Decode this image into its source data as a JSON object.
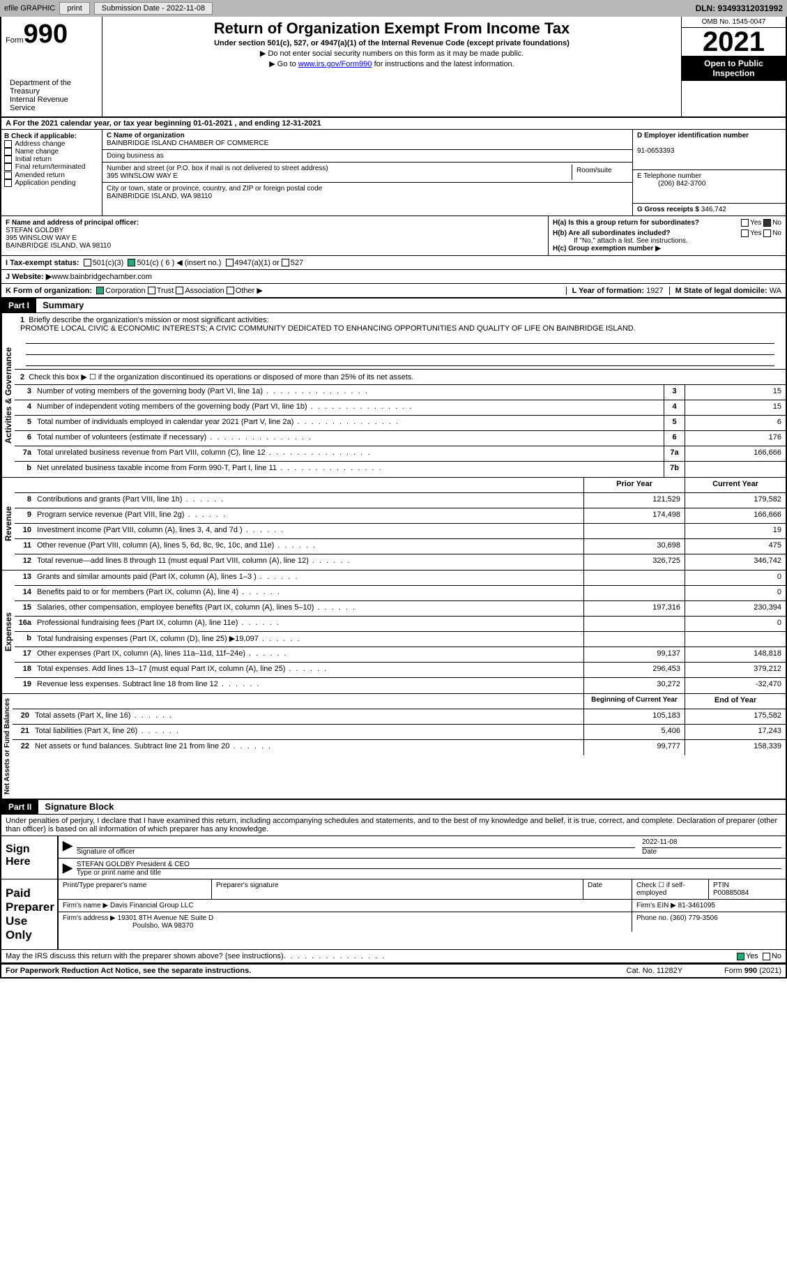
{
  "topbar": {
    "efile": "efile GRAPHIC",
    "print": "print",
    "subdate_label": "Submission Date - ",
    "subdate": "2022-11-08",
    "dln": "DLN: 93493312031992"
  },
  "header": {
    "form_word": "Form",
    "form_no": "990",
    "title": "Return of Organization Exempt From Income Tax",
    "sub": "Under section 501(c), 527, or 4947(a)(1) of the Internal Revenue Code (except private foundations)",
    "note1": "▶ Do not enter social security numbers on this form as it may be made public.",
    "note2_pre": "▶ Go to ",
    "note2_link": "www.irs.gov/Form990",
    "note2_post": " for instructions and the latest information.",
    "dept": "Department of the Treasury\nInternal Revenue Service",
    "omb": "OMB No. 1545-0047",
    "year": "2021",
    "open_pub": "Open to Public Inspection"
  },
  "line_a": "A For the 2021 calendar year, or tax year beginning 01-01-2021   , and ending 12-31-2021",
  "block_b": {
    "label": "B Check if applicable:",
    "opts": [
      "Address change",
      "Name change",
      "Initial return",
      "Final return/terminated",
      "Amended return",
      "Application pending"
    ]
  },
  "block_c": {
    "name_label": "C Name of organization",
    "name": "BAINBRIDGE ISLAND CHAMBER OF COMMERCE",
    "dba": "Doing business as",
    "addr_label": "Number and street (or P.O. box if mail is not delivered to street address)",
    "room": "Room/suite",
    "addr": "395 WINSLOW WAY E",
    "city_label": "City or town, state or province, country, and ZIP or foreign postal code",
    "city": "BAINBRIDGE ISLAND, WA  98110"
  },
  "block_d": {
    "ein_label": "D Employer identification number",
    "ein": "91-0653393",
    "tel_label": "E Telephone number",
    "tel": "(206) 842-3700",
    "gross_label": "G Gross receipts $ ",
    "gross": "346,742"
  },
  "block_f": {
    "label": "F  Name and address of principal officer:",
    "name": "STEFAN GOLDBY",
    "addr1": "395 WINSLOW WAY E",
    "addr2": "BAINBRIDGE ISLAND, WA  98110"
  },
  "block_h": {
    "a": "H(a)  Is this a group return for subordinates?",
    "b": "H(b)  Are all subordinates included?",
    "bnote": "If \"No,\" attach a list. See instructions.",
    "c": "H(c)  Group exemption number ▶",
    "yes": "Yes",
    "no": "No"
  },
  "line_i": {
    "label": "I    Tax-exempt status:",
    "o1": "501(c)(3)",
    "o2": "501(c) ( 6 ) ◀ (insert no.)",
    "o3": "4947(a)(1) or",
    "o4": "527"
  },
  "line_j": {
    "label": "J   Website: ▶ ",
    "val": "www.bainbridgechamber.com"
  },
  "line_k": {
    "label": "K Form of organization:",
    "corp": "Corporation",
    "trust": "Trust",
    "assoc": "Association",
    "other": "Other ▶",
    "l_label": "L Year of formation: ",
    "l_val": "1927",
    "m_label": "M State of legal domicile: ",
    "m_val": "WA"
  },
  "part1": {
    "hdr": "Part I",
    "title": "Summary",
    "q1": "Briefly describe the organization's mission or most significant activities:",
    "mission": "PROMOTE LOCAL CIVIC & ECONOMIC INTERESTS; A CIVIC COMMUNITY DEDICATED TO ENHANCING OPPORTUNITIES AND QUALITY OF LIFE ON BAINBRIDGE ISLAND.",
    "q2": "Check this box ▶ ☐ if the organization discontinued its operations or disposed of more than 25% of its net assets.",
    "tab_gov": "Activities & Governance",
    "tab_rev": "Revenue",
    "tab_exp": "Expenses",
    "tab_net": "Net Assets or Fund Balances",
    "rows_gov": [
      {
        "n": "3",
        "d": "Number of voting members of the governing body (Part VI, line 1a)",
        "ln": "3",
        "v": "15"
      },
      {
        "n": "4",
        "d": "Number of independent voting members of the governing body (Part VI, line 1b)",
        "ln": "4",
        "v": "15"
      },
      {
        "n": "5",
        "d": "Total number of individuals employed in calendar year 2021 (Part V, line 2a)",
        "ln": "5",
        "v": "6"
      },
      {
        "n": "6",
        "d": "Total number of volunteers (estimate if necessary)",
        "ln": "6",
        "v": "176"
      },
      {
        "n": "7a",
        "d": "Total unrelated business revenue from Part VIII, column (C), line 12",
        "ln": "7a",
        "v": "166,666"
      },
      {
        "n": "b",
        "d": "Net unrelated business taxable income from Form 990-T, Part I, line 11",
        "ln": "7b",
        "v": ""
      }
    ],
    "hdr_prior": "Prior Year",
    "hdr_curr": "Current Year",
    "rows_rev": [
      {
        "n": "8",
        "d": "Contributions and grants (Part VIII, line 1h)",
        "p": "121,529",
        "c": "179,582"
      },
      {
        "n": "9",
        "d": "Program service revenue (Part VIII, line 2g)",
        "p": "174,498",
        "c": "166,666"
      },
      {
        "n": "10",
        "d": "Investment income (Part VIII, column (A), lines 3, 4, and 7d )",
        "p": "",
        "c": "19"
      },
      {
        "n": "11",
        "d": "Other revenue (Part VIII, column (A), lines 5, 6d, 8c, 9c, 10c, and 11e)",
        "p": "30,698",
        "c": "475"
      },
      {
        "n": "12",
        "d": "Total revenue—add lines 8 through 11 (must equal Part VIII, column (A), line 12)",
        "p": "326,725",
        "c": "346,742"
      }
    ],
    "rows_exp": [
      {
        "n": "13",
        "d": "Grants and similar amounts paid (Part IX, column (A), lines 1–3 )",
        "p": "",
        "c": "0"
      },
      {
        "n": "14",
        "d": "Benefits paid to or for members (Part IX, column (A), line 4)",
        "p": "",
        "c": "0"
      },
      {
        "n": "15",
        "d": "Salaries, other compensation, employee benefits (Part IX, column (A), lines 5–10)",
        "p": "197,316",
        "c": "230,394"
      },
      {
        "n": "16a",
        "d": "Professional fundraising fees (Part IX, column (A), line 11e)",
        "p": "",
        "c": "0"
      },
      {
        "n": "b",
        "d": "Total fundraising expenses (Part IX, column (D), line 25) ▶19,097",
        "p": "–shade–",
        "c": "–shade–"
      },
      {
        "n": "17",
        "d": "Other expenses (Part IX, column (A), lines 11a–11d, 11f–24e)",
        "p": "99,137",
        "c": "148,818"
      },
      {
        "n": "18",
        "d": "Total expenses. Add lines 13–17 (must equal Part IX, column (A), line 25)",
        "p": "296,453",
        "c": "379,212"
      },
      {
        "n": "19",
        "d": "Revenue less expenses. Subtract line 18 from line 12",
        "p": "30,272",
        "c": "-32,470"
      }
    ],
    "hdr_beg": "Beginning of Current Year",
    "hdr_end": "End of Year",
    "rows_net": [
      {
        "n": "20",
        "d": "Total assets (Part X, line 16)",
        "p": "105,183",
        "c": "175,582"
      },
      {
        "n": "21",
        "d": "Total liabilities (Part X, line 26)",
        "p": "5,406",
        "c": "17,243"
      },
      {
        "n": "22",
        "d": "Net assets or fund balances. Subtract line 21 from line 20",
        "p": "99,777",
        "c": "158,339"
      }
    ]
  },
  "part2": {
    "hdr": "Part II",
    "title": "Signature Block",
    "decl": "Under penalties of perjury, I declare that I have examined this return, including accompanying schedules and statements, and to the best of my knowledge and belief, it is true, correct, and complete. Declaration of preparer (other than officer) is based on all information of which preparer has any knowledge.",
    "sign_here": "Sign Here",
    "sig_of": "Signature of officer",
    "date": "Date",
    "sig_date": "2022-11-08",
    "officer": "STEFAN GOLDBY  President & CEO",
    "type_name": "Type or print name and title",
    "paid_prep": "Paid Preparer Use Only",
    "pp_name": "Print/Type preparer's name",
    "pp_sig": "Preparer's signature",
    "pp_date": "Date",
    "pp_check": "Check ☐ if self-employed",
    "ptin_label": "PTIN",
    "ptin": "P00885084",
    "firm_name_label": "Firm's name     ▶ ",
    "firm_name": "Davis Financial Group LLC",
    "firm_ein_label": "Firm's EIN ▶ ",
    "firm_ein": "81-3461095",
    "firm_addr_label": "Firm's address ▶ ",
    "firm_addr1": "19301 8TH Avenue NE Suite D",
    "firm_addr2": "Poulsbo, WA  98370",
    "phone_label": "Phone no. ",
    "phone": "(360) 779-3506",
    "discuss": "May the IRS discuss this return with the preparer shown above? (see instructions)",
    "yes": "Yes",
    "no": "No"
  },
  "footer": {
    "pra": "For Paperwork Reduction Act Notice, see the separate instructions.",
    "cat": "Cat. No. 11282Y",
    "form": "Form 990 (2021)"
  }
}
